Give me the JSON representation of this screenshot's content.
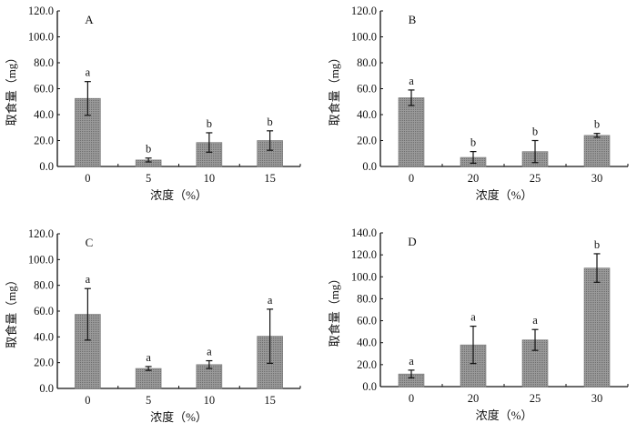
{
  "chart_data": [
    {
      "type": "bar",
      "title": "A",
      "xlabel": "浓度（%）",
      "ylabel": "取食量（mg）",
      "categories": [
        "0",
        "5",
        "10",
        "15"
      ],
      "values": [
        52.5,
        5.0,
        18.5,
        20.0
      ],
      "errors": [
        13.0,
        1.5,
        7.5,
        7.5
      ],
      "significance": [
        "a",
        "b",
        "b",
        "b"
      ],
      "ylim": [
        0,
        120
      ],
      "yticks": [
        "0.0",
        "20.0",
        "40.0",
        "60.0",
        "80.0",
        "100.0",
        "120.0"
      ],
      "grid": false
    },
    {
      "type": "bar",
      "title": "B",
      "xlabel": "浓度（%）",
      "ylabel": "取食量（mg）",
      "categories": [
        "0",
        "20",
        "25",
        "30"
      ],
      "values": [
        53.0,
        7.0,
        11.5,
        24.0
      ],
      "errors": [
        6.0,
        4.5,
        8.5,
        1.5
      ],
      "significance": [
        "a",
        "b",
        "b",
        "b"
      ],
      "ylim": [
        0,
        120
      ],
      "yticks": [
        "0.0",
        "20.0",
        "40.0",
        "60.0",
        "80.0",
        "100.0",
        "120.0"
      ],
      "grid": false
    },
    {
      "type": "bar",
      "title": "C",
      "xlabel": "浓度（%）",
      "ylabel": "取食量（mg）",
      "categories": [
        "0",
        "5",
        "10",
        "15"
      ],
      "values": [
        57.5,
        15.5,
        18.5,
        40.5
      ],
      "errors": [
        20.0,
        1.5,
        3.0,
        21.0
      ],
      "significance": [
        "a",
        "a",
        "a",
        "a"
      ],
      "ylim": [
        0,
        120
      ],
      "yticks": [
        "0.0",
        "20.0",
        "40.0",
        "60.0",
        "80.0",
        "100.0",
        "120.0"
      ],
      "grid": false
    },
    {
      "type": "bar",
      "title": "D",
      "xlabel": "浓度（%）",
      "ylabel": "取食量（mg）",
      "categories": [
        "0",
        "20",
        "25",
        "30"
      ],
      "values": [
        11.5,
        38.0,
        42.5,
        108.0
      ],
      "errors": [
        3.5,
        17.0,
        9.5,
        13.0
      ],
      "significance": [
        "a",
        "a",
        "a",
        "b"
      ],
      "ylim": [
        0,
        140
      ],
      "yticks": [
        "0.0",
        "20.0",
        "40.0",
        "60.0",
        "80.0",
        "100.0",
        "120.0",
        "140.0"
      ],
      "grid": false
    }
  ],
  "colors": {
    "bar": "#8a8a8a",
    "axis": "#111111"
  }
}
